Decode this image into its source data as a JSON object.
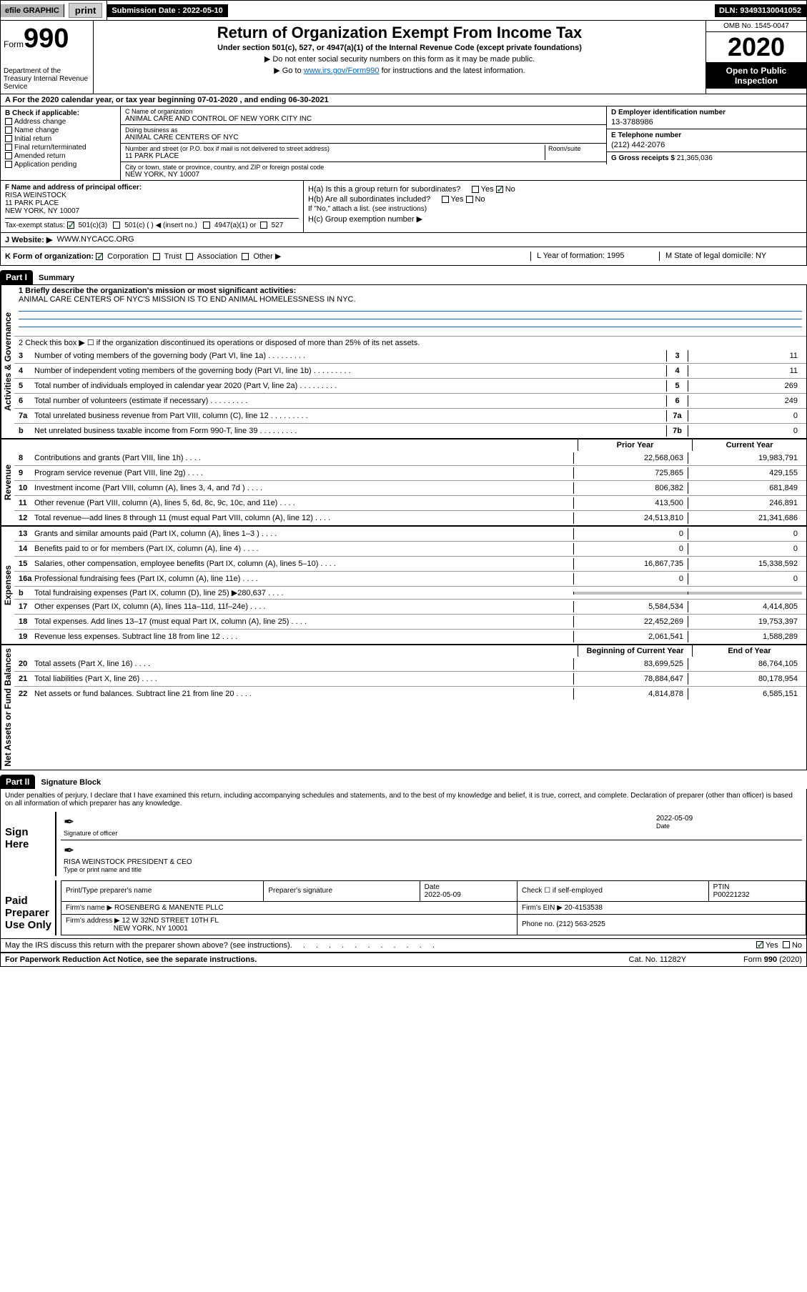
{
  "topbar": {
    "efile": "efile GRAPHIC",
    "print": "print",
    "subdate_label": "Submission Date :",
    "subdate": "2022-05-10",
    "dln": "DLN: 93493130041052"
  },
  "header": {
    "form_word": "Form",
    "form_num": "990",
    "dept": "Department of the Treasury\nInternal Revenue Service",
    "title": "Return of Organization Exempt From Income Tax",
    "subtitle": "Under section 501(c), 527, or 4947(a)(1) of the Internal Revenue Code (except private foundations)",
    "note1": "▶ Do not enter social security numbers on this form as it may be made public.",
    "note2_pre": "▶ Go to ",
    "note2_link": "www.irs.gov/Form990",
    "note2_post": " for instructions and the latest information.",
    "omb": "OMB No. 1545-0047",
    "year": "2020",
    "inspect": "Open to Public Inspection"
  },
  "section_a": "A For the 2020 calendar year, or tax year beginning 07-01-2020    , and ending 06-30-2021",
  "col_b": {
    "header": "B Check if applicable:",
    "items": [
      "Address change",
      "Name change",
      "Initial return",
      "Final return/terminated",
      "Amended return",
      "Application pending"
    ]
  },
  "col_c": {
    "name_label": "C Name of organization",
    "name": "ANIMAL CARE AND CONTROL OF NEW YORK CITY INC",
    "dba_label": "Doing business as",
    "dba": "ANIMAL CARE CENTERS OF NYC",
    "addr_label": "Number and street (or P.O. box if mail is not delivered to street address)",
    "room_label": "Room/suite",
    "addr": "11 PARK PLACE",
    "city_label": "City or town, state or province, country, and ZIP or foreign postal code",
    "city": "NEW YORK, NY  10007"
  },
  "col_d": {
    "d_label": "D Employer identification number",
    "d_val": "13-3788986",
    "e_label": "E Telephone number",
    "e_val": "(212) 442-2076",
    "g_label": "G Gross receipts $",
    "g_val": "21,365,036"
  },
  "col_f": {
    "f_label": "F Name and address of principal officer:",
    "f_name": "RISA WEINSTOCK",
    "f_addr1": "11 PARK PLACE",
    "f_addr2": "NEW YORK, NY  10007",
    "tax_exempt": "Tax-exempt status:",
    "s501c3": "501(c)(3)",
    "s501c": "501(c) (  ) ◀ (insert no.)",
    "s4947": "4947(a)(1) or",
    "s527": "527"
  },
  "col_h": {
    "ha": "H(a)  Is this a group return for subordinates?",
    "yes": "Yes",
    "no": "No",
    "hb": "H(b)  Are all subordinates included?",
    "hb_note": "If \"No,\" attach a list. (see instructions)",
    "hc": "H(c)  Group exemption number ▶"
  },
  "row_j": {
    "label": "J  Website: ▶",
    "val": "WWW.NYCACC.ORG"
  },
  "row_k": {
    "k": "K Form of organization:",
    "corp": "Corporation",
    "trust": "Trust",
    "assoc": "Association",
    "other": "Other ▶",
    "l": "L Year of formation: 1995",
    "m": "M State of legal domicile: NY"
  },
  "part1": {
    "header": "Part I",
    "title": "Summary",
    "line1_label": "1  Briefly describe the organization's mission or most significant activities:",
    "line1_val": "ANIMAL CARE CENTERS OF NYC'S MISSION IS TO END ANIMAL HOMELESSNESS IN NYC.",
    "line2": "2   Check this box ▶ ☐  if the organization discontinued its operations or disposed of more than 25% of its net assets.",
    "governance_label": "Activities & Governance",
    "revenue_label": "Revenue",
    "expenses_label": "Expenses",
    "netassets_label": "Net Assets or Fund Balances",
    "lines_gov": [
      {
        "n": "3",
        "t": "Number of voting members of the governing body (Part VI, line 1a)",
        "box": "3",
        "v": "11"
      },
      {
        "n": "4",
        "t": "Number of independent voting members of the governing body (Part VI, line 1b)",
        "box": "4",
        "v": "11"
      },
      {
        "n": "5",
        "t": "Total number of individuals employed in calendar year 2020 (Part V, line 2a)",
        "box": "5",
        "v": "269"
      },
      {
        "n": "6",
        "t": "Total number of volunteers (estimate if necessary)",
        "box": "6",
        "v": "249"
      },
      {
        "n": "7a",
        "t": "Total unrelated business revenue from Part VIII, column (C), line 12",
        "box": "7a",
        "v": "0"
      },
      {
        "n": "b",
        "t": "Net unrelated business taxable income from Form 990-T, line 39",
        "box": "7b",
        "v": "0"
      }
    ],
    "hdr_prior": "Prior Year",
    "hdr_current": "Current Year",
    "lines_rev": [
      {
        "n": "8",
        "t": "Contributions and grants (Part VIII, line 1h)",
        "p": "22,568,063",
        "c": "19,983,791"
      },
      {
        "n": "9",
        "t": "Program service revenue (Part VIII, line 2g)",
        "p": "725,865",
        "c": "429,155"
      },
      {
        "n": "10",
        "t": "Investment income (Part VIII, column (A), lines 3, 4, and 7d )",
        "p": "806,382",
        "c": "681,849"
      },
      {
        "n": "11",
        "t": "Other revenue (Part VIII, column (A), lines 5, 6d, 8c, 9c, 10c, and 11e)",
        "p": "413,500",
        "c": "246,891"
      },
      {
        "n": "12",
        "t": "Total revenue—add lines 8 through 11 (must equal Part VIII, column (A), line 12)",
        "p": "24,513,810",
        "c": "21,341,686"
      }
    ],
    "lines_exp": [
      {
        "n": "13",
        "t": "Grants and similar amounts paid (Part IX, column (A), lines 1–3 )",
        "p": "0",
        "c": "0"
      },
      {
        "n": "14",
        "t": "Benefits paid to or for members (Part IX, column (A), line 4)",
        "p": "0",
        "c": "0"
      },
      {
        "n": "15",
        "t": "Salaries, other compensation, employee benefits (Part IX, column (A), lines 5–10)",
        "p": "16,867,735",
        "c": "15,338,592"
      },
      {
        "n": "16a",
        "t": "Professional fundraising fees (Part IX, column (A), line 11e)",
        "p": "0",
        "c": "0"
      },
      {
        "n": "b",
        "t": "Total fundraising expenses (Part IX, column (D), line 25) ▶280,637",
        "p": "",
        "c": "",
        "shaded": true
      },
      {
        "n": "17",
        "t": "Other expenses (Part IX, column (A), lines 11a–11d, 11f–24e)",
        "p": "5,584,534",
        "c": "4,414,805"
      },
      {
        "n": "18",
        "t": "Total expenses. Add lines 13–17 (must equal Part IX, column (A), line 25)",
        "p": "22,452,269",
        "c": "19,753,397"
      },
      {
        "n": "19",
        "t": "Revenue less expenses. Subtract line 18 from line 12",
        "p": "2,061,541",
        "c": "1,588,289"
      }
    ],
    "hdr_beg": "Beginning of Current Year",
    "hdr_end": "End of Year",
    "lines_net": [
      {
        "n": "20",
        "t": "Total assets (Part X, line 16)",
        "p": "83,699,525",
        "c": "86,764,105"
      },
      {
        "n": "21",
        "t": "Total liabilities (Part X, line 26)",
        "p": "78,884,647",
        "c": "80,178,954"
      },
      {
        "n": "22",
        "t": "Net assets or fund balances. Subtract line 21 from line 20",
        "p": "4,814,878",
        "c": "6,585,151"
      }
    ]
  },
  "part2": {
    "header": "Part II",
    "title": "Signature Block",
    "penalty": "Under penalties of perjury, I declare that I have examined this return, including accompanying schedules and statements, and to the best of my knowledge and belief, it is true, correct, and complete. Declaration of preparer (other than officer) is based on all information of which preparer has any knowledge.",
    "sign_here": "Sign Here",
    "sig_officer": "Signature of officer",
    "sig_date": "2022-05-09",
    "date_label": "Date",
    "officer_name": "RISA WEINSTOCK PRESIDENT & CEO",
    "type_name": "Type or print name and title",
    "paid_prep": "Paid Preparer Use Only",
    "prep_name_label": "Print/Type preparer's name",
    "prep_sig_label": "Preparer's signature",
    "prep_date_label": "Date",
    "prep_date": "2022-05-09",
    "check_if": "Check ☐ if self-employed",
    "ptin_label": "PTIN",
    "ptin": "P00221232",
    "firm_name_label": "Firm's name    ▶",
    "firm_name": "ROSENBERG & MANENTE PLLC",
    "firm_ein_label": "Firm's EIN ▶",
    "firm_ein": "20-4153538",
    "firm_addr_label": "Firm's address ▶",
    "firm_addr1": "12 W 32ND STREET 10TH FL",
    "firm_addr2": "NEW YORK, NY  10001",
    "phone_label": "Phone no.",
    "phone": "(212) 563-2525",
    "discuss": "May the IRS discuss this return with the preparer shown above? (see instructions)",
    "paperwork": "For Paperwork Reduction Act Notice, see the separate instructions.",
    "catno": "Cat. No. 11282Y",
    "formno": "Form 990 (2020)"
  }
}
